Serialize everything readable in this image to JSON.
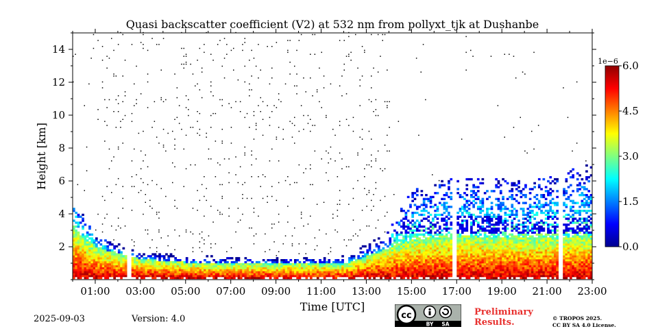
{
  "chart_data": {
    "type": "heatmap",
    "title": "Quasi backscatter coefficient (V2) at 532 nm from pollyxt_tjk at Dushanbe",
    "xlabel": "Time [UTC]",
    "ylabel": "Height [km]",
    "x_range_hours": [
      0,
      23
    ],
    "y_range_km": [
      0,
      15
    ],
    "x_tick_hours": [
      1,
      3,
      5,
      7,
      9,
      11,
      13,
      15,
      17,
      19,
      21,
      23
    ],
    "x_tick_labels": [
      "01:00",
      "03:00",
      "05:00",
      "07:00",
      "09:00",
      "11:00",
      "13:00",
      "15:00",
      "17:00",
      "19:00",
      "21:00",
      "23:00"
    ],
    "y_ticks": [
      2,
      4,
      6,
      8,
      10,
      12,
      14
    ],
    "y_tick_labels": [
      "2",
      "4",
      "6",
      "8",
      "10",
      "12",
      "14"
    ],
    "colorbar": {
      "min": 0.0,
      "max": 6.0,
      "scale_label": "1e−6",
      "ticks": [
        0.0,
        1.5,
        3.0,
        4.5,
        6.0
      ],
      "tick_labels": [
        "0.0",
        "1.5",
        "3.0",
        "4.5",
        "6.0"
      ],
      "colormap": [
        "#00008f",
        "#0000ff",
        "#0080ff",
        "#00ffff",
        "#80ff80",
        "#ffff00",
        "#ff8000",
        "#ff0000",
        "#8f0000"
      ]
    },
    "data_gaps_hours": [
      [
        2.45,
        2.58
      ],
      [
        16.88,
        16.98
      ],
      [
        21.58,
        21.68
      ]
    ],
    "profile_features": [
      {
        "t": 0.0,
        "pbl_top_km": 3.0,
        "aerosol_top_km": 4.8
      },
      {
        "t": 1.0,
        "pbl_top_km": 1.9,
        "aerosol_top_km": 2.6
      },
      {
        "t": 3.0,
        "pbl_top_km": 1.2,
        "aerosol_top_km": 1.6
      },
      {
        "t": 6.0,
        "pbl_top_km": 0.9,
        "aerosol_top_km": 1.4
      },
      {
        "t": 9.0,
        "pbl_top_km": 0.9,
        "aerosol_top_km": 1.3
      },
      {
        "t": 12.0,
        "pbl_top_km": 0.9,
        "aerosol_top_km": 1.4
      },
      {
        "t": 13.8,
        "pbl_top_km": 1.8,
        "aerosol_top_km": 2.8
      },
      {
        "t": 15.0,
        "pbl_top_km": 2.4,
        "aerosol_top_km": 5.5
      },
      {
        "t": 17.0,
        "pbl_top_km": 2.6,
        "aerosol_top_km": 6.2
      },
      {
        "t": 20.0,
        "pbl_top_km": 2.5,
        "aerosol_top_km": 6.0
      },
      {
        "t": 23.0,
        "pbl_top_km": 2.6,
        "aerosol_top_km": 7.0
      }
    ]
  },
  "footer": {
    "date": "2025-09-03",
    "version": "Version: 4.0",
    "preliminary_line1": "Preliminary",
    "preliminary_line2": "Results.",
    "copyright_line1": "© TROPOS 2025.",
    "copyright_line2": "CC BY SA 4.0 License.",
    "license_badge_by": "BY",
    "license_badge_sa": "SA",
    "license_badge_cc": "cc"
  }
}
